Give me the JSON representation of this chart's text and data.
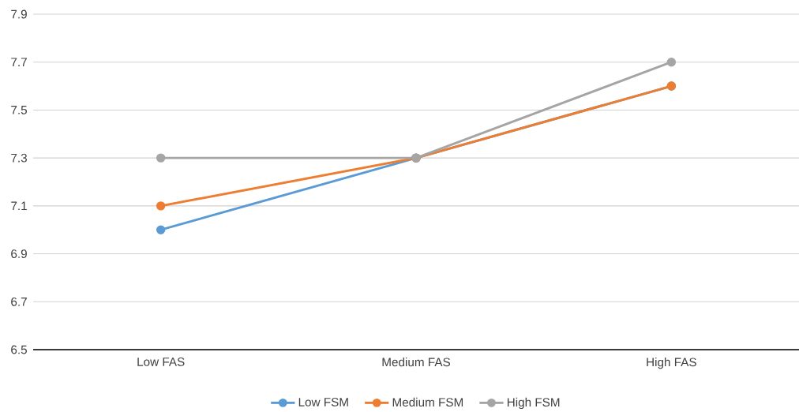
{
  "chart_data": {
    "type": "line",
    "categories": [
      "Low FAS",
      "Medium FAS",
      "High FAS"
    ],
    "series": [
      {
        "name": "Low FSM",
        "color": "#5b9bd5",
        "values": [
          7.0,
          7.3,
          7.6
        ]
      },
      {
        "name": "Medium FSM",
        "color": "#ed7d31",
        "values": [
          7.1,
          7.3,
          7.6
        ]
      },
      {
        "name": "High FSM",
        "color": "#a5a5a5",
        "values": [
          7.3,
          7.3,
          7.7
        ]
      }
    ],
    "ylim": [
      6.5,
      7.9
    ],
    "yticks": [
      6.5,
      6.7,
      6.9,
      7.1,
      7.3,
      7.5,
      7.7,
      7.9
    ],
    "grid": "y",
    "legend": "bottom",
    "marker": "circle",
    "line_style": "solid"
  }
}
